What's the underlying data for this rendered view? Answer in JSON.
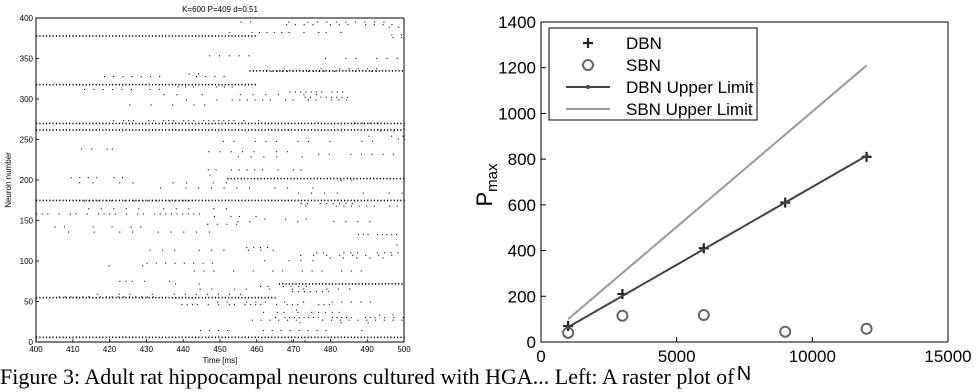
{
  "raster": {
    "title": "K=600 P=409 d=0.51",
    "xlabel": "Time [ms]",
    "ylabel": "Neuron number",
    "xticks": [
      "400",
      "410",
      "420",
      "430",
      "440",
      "450",
      "460",
      "470",
      "480",
      "490",
      "500"
    ],
    "yticks": [
      "0",
      "50",
      "100",
      "150",
      "200",
      "250",
      "300",
      "350",
      "400"
    ]
  },
  "chart_data": [
    {
      "type": "scatter",
      "title": "K=600 P=409 d=0.51",
      "xlabel": "Time [ms]",
      "ylabel": "Neuron number",
      "xlim": [
        400,
        500
      ],
      "ylim": [
        0,
        400
      ],
      "grid": false,
      "dense_rows": [
        {
          "neuron": 6,
          "from": 400,
          "to": 500
        },
        {
          "neuron": 55,
          "from": 400,
          "to": 465
        },
        {
          "neuron": 72,
          "from": 466,
          "to": 500
        },
        {
          "neuron": 175,
          "from": 400,
          "to": 500
        },
        {
          "neuron": 202,
          "from": 452,
          "to": 500
        },
        {
          "neuron": 262,
          "from": 400,
          "to": 500
        },
        {
          "neuron": 270,
          "from": 400,
          "to": 500
        },
        {
          "neuron": 318,
          "from": 400,
          "to": 460
        },
        {
          "neuron": 335,
          "from": 458,
          "to": 500
        },
        {
          "neuron": 378,
          "from": 400,
          "to": 460
        }
      ]
    },
    {
      "type": "line",
      "xlabel": "N",
      "ylabel": "P",
      "ylabel_sub": "max",
      "xlim": [
        0,
        15000
      ],
      "ylim": [
        0,
        1400
      ],
      "xticks": [
        "0",
        "5000",
        "10000",
        "15000"
      ],
      "yticks": [
        "0",
        "200",
        "400",
        "600",
        "800",
        "1000",
        "1200",
        "1400"
      ],
      "legend_position": "top-left",
      "grid": false,
      "series": [
        {
          "name": "DBN",
          "marker": "plus",
          "color": "#222222",
          "x": [
            1000,
            3000,
            6000,
            9000,
            12000
          ],
          "y": [
            70,
            210,
            410,
            610,
            810
          ]
        },
        {
          "name": "SBN",
          "marker": "circle",
          "color": "#666666",
          "x": [
            1000,
            3000,
            6000,
            9000,
            12000
          ],
          "y": [
            40,
            115,
            118,
            45,
            58
          ]
        },
        {
          "name": "DBN Upper Limit",
          "marker": "dot-line",
          "color": "#444444",
          "x": [
            1000,
            12000
          ],
          "y": [
            65,
            815
          ]
        },
        {
          "name": "SBN Upper Limit",
          "marker": "line",
          "color": "#999999",
          "x": [
            1000,
            12000
          ],
          "y": [
            100,
            1210
          ]
        }
      ]
    }
  ],
  "caption": "Figure 3: Adult rat hippocampal neurons cultured with HGA... Left: A raster plot of"
}
